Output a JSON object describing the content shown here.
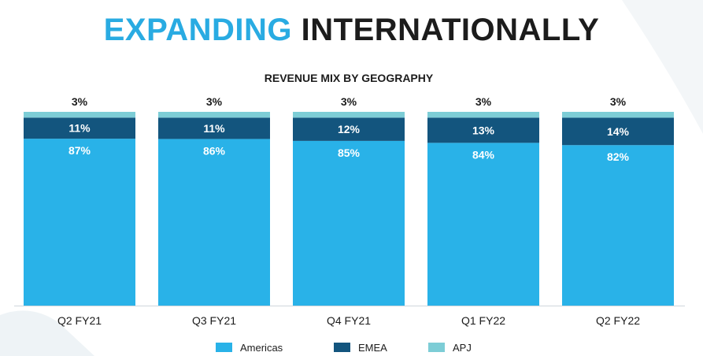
{
  "header": {
    "title_highlight": "EXPANDING",
    "title_rest": "INTERNATIONALLY"
  },
  "colors": {
    "americas": "#29b2e8",
    "emea": "#13557e",
    "apj": "#7dcdd6",
    "accent": "#29abe2",
    "text": "#1c1c1c"
  },
  "chart_data": {
    "type": "bar",
    "stacked": true,
    "title": "REVENUE MIX BY GEOGRAPHY",
    "categories": [
      "Q2 FY21",
      "Q3 FY21",
      "Q4 FY21",
      "Q1 FY22",
      "Q2 FY22"
    ],
    "series": [
      {
        "name": "Americas",
        "values": [
          87,
          86,
          85,
          84,
          82
        ],
        "labels": [
          "87%",
          "86%",
          "85%",
          "84%",
          "82%"
        ]
      },
      {
        "name": "EMEA",
        "values": [
          11,
          11,
          12,
          13,
          14
        ],
        "labels": [
          "11%",
          "11%",
          "12%",
          "13%",
          "14%"
        ]
      },
      {
        "name": "APJ",
        "values": [
          3,
          3,
          3,
          3,
          3
        ],
        "labels": [
          "3%",
          "3%",
          "3%",
          "3%",
          "3%"
        ]
      }
    ],
    "ylim": [
      0,
      100
    ],
    "xlabel": "",
    "ylabel": "",
    "grid": false,
    "legend_position": "bottom"
  }
}
